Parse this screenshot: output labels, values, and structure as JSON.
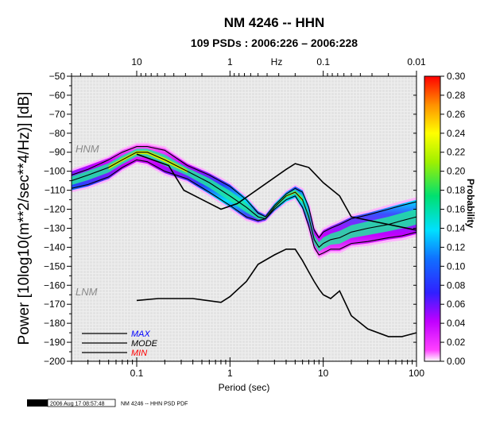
{
  "page": {
    "title": "NM 4246 -- HHN",
    "subtitle": "109 PSDs : 2006:226 – 2006:228",
    "footer_logo": "GMT",
    "footer_timestamp": "2006 Aug 17 08:57:48",
    "footer_caption": "NM 4246 -- HHN PSD PDF"
  },
  "colors": {
    "background_grid": "#e6e6e6",
    "curves": "#000000",
    "max_label": "#0000ff",
    "mode_label": "#000000",
    "min_label": "#ff0000",
    "model_label": "#8a8a8a"
  },
  "chart_data": {
    "type": "heatmap",
    "title": "NM 4246 -- HHN",
    "subtitle": "109 PSDs : 2006:226 – 2006:228",
    "xlabel": "Period (sec)",
    "ylabel": "Power [10log10(m**2/sec**4/Hz)] [dB]",
    "top_axis_label": "Hz",
    "x_scale": "log",
    "xlim": [
      0.02,
      100
    ],
    "ylim": [
      -200,
      -50
    ],
    "x_ticks": [
      0.1,
      1,
      10,
      100
    ],
    "x_tick_labels": [
      "0.1",
      "1",
      "10",
      "100"
    ],
    "top_ticks": [
      10,
      1,
      0.1,
      0.01
    ],
    "top_tick_labels": [
      "10",
      "1",
      "0.1",
      "0.01"
    ],
    "y_ticks": [
      -50,
      -60,
      -70,
      -80,
      -90,
      -100,
      -110,
      -120,
      -130,
      -140,
      -150,
      -160,
      -170,
      -180,
      -190,
      -200
    ],
    "y_tick_labels": [
      "−50",
      "−60",
      "−70",
      "−80",
      "−90",
      "−100",
      "−110",
      "−120",
      "−130",
      "−140",
      "−150",
      "−160",
      "−170",
      "−180",
      "−190",
      "−200"
    ],
    "colorbar": {
      "label": "Probability",
      "range": [
        0,
        0.3
      ],
      "ticks": [
        0,
        0.02,
        0.04,
        0.06,
        0.08,
        0.1,
        0.12,
        0.14,
        0.16,
        0.18,
        0.2,
        0.22,
        0.24,
        0.26,
        0.28,
        0.3
      ],
      "tick_labels": [
        "0.00",
        "0.02",
        "0.04",
        "0.06",
        "0.08",
        "0.10",
        "0.12",
        "0.14",
        "0.16",
        "0.18",
        "0.20",
        "0.22",
        "0.24",
        "0.26",
        "0.28",
        "0.30"
      ]
    },
    "legend": {
      "position": "bottom-left",
      "entries": [
        "MAX",
        "MODE",
        "MIN"
      ]
    },
    "noise_models": {
      "labels": {
        "high": "HNM",
        "low": "LNM"
      },
      "NHNM": {
        "x": [
          0.1,
          0.22,
          0.32,
          0.8,
          1.2,
          4,
          5,
          7,
          8,
          10,
          15,
          20,
          100
        ],
        "y": [
          -91,
          -97,
          -110,
          -120,
          -117,
          -99,
          -96,
          -98,
          -101,
          -106,
          -113,
          -124,
          -131
        ]
      },
      "NLNM": {
        "x": [
          0.1,
          0.17,
          0.4,
          0.8,
          1,
          1.5,
          2,
          3,
          4,
          5,
          6,
          7,
          8,
          9,
          10,
          12,
          15,
          20,
          30,
          50,
          70,
          100
        ],
        "y": [
          -168,
          -167,
          -167,
          -169,
          -166,
          -158,
          -149,
          -144,
          -141,
          -141,
          -147,
          -153,
          -158,
          -162,
          -165,
          -167,
          -163,
          -176,
          -183,
          -187,
          -187,
          -185
        ]
      }
    },
    "pdf_band": {
      "x": [
        0.02,
        0.03,
        0.05,
        0.07,
        0.1,
        0.13,
        0.2,
        0.35,
        0.6,
        1,
        1.5,
        2,
        2.4,
        3,
        4,
        5,
        6,
        7,
        8,
        9,
        10,
        12,
        15,
        20,
        30,
        50,
        70,
        100
      ],
      "upper": [
        -100,
        -97,
        -93,
        -89,
        -86,
        -86,
        -88,
        -96,
        -101,
        -107,
        -114,
        -121,
        -123,
        -117,
        -111,
        -108,
        -110,
        -118,
        -130,
        -134,
        -131,
        -129,
        -127,
        -124,
        -122,
        -119,
        -117,
        -115
      ],
      "lower": [
        -110,
        -108,
        -104,
        -99,
        -95,
        -96,
        -101,
        -105,
        -112,
        -119,
        -125,
        -127,
        -126,
        -121,
        -116,
        -114,
        -120,
        -130,
        -141,
        -145,
        -144,
        -142,
        -142,
        -139,
        -138,
        -136,
        -135,
        -133
      ],
      "peak": [
        -105,
        -102,
        -98,
        -94,
        -90,
        -90,
        -94,
        -100,
        -106,
        -113,
        -119,
        -124,
        -125,
        -119,
        -113,
        -111,
        -115,
        -124,
        -136,
        -140,
        -138,
        -136,
        -135,
        -132,
        -130,
        -128,
        -126,
        -124
      ]
    },
    "series": [
      {
        "name": "MAX",
        "x": [
          0.02,
          0.03,
          0.05,
          0.07,
          0.1,
          0.13,
          0.2,
          0.35,
          0.6,
          1,
          1.5,
          2,
          2.4,
          3,
          4,
          5,
          6,
          7,
          8,
          9,
          10,
          12,
          15,
          20,
          30,
          50,
          70,
          100
        ],
        "y": [
          -102,
          -99,
          -94,
          -90,
          -87,
          -87,
          -89,
          -97,
          -102,
          -108,
          -115,
          -122,
          -124,
          -118,
          -112,
          -109,
          -111,
          -119,
          -131,
          -135,
          -132,
          -130,
          -128,
          -125,
          -123,
          -120,
          -118,
          -116
        ]
      },
      {
        "name": "MODE",
        "x": [
          0.02,
          0.03,
          0.05,
          0.07,
          0.1,
          0.13,
          0.2,
          0.35,
          0.6,
          1,
          1.5,
          2,
          2.4,
          3,
          4,
          5,
          6,
          7,
          8,
          9,
          10,
          12,
          15,
          20,
          30,
          50,
          70,
          100
        ],
        "y": [
          -105,
          -102,
          -98,
          -94,
          -90,
          -90,
          -94,
          -100,
          -106,
          -113,
          -119,
          -124,
          -125,
          -119,
          -113,
          -111,
          -115,
          -124,
          -136,
          -140,
          -138,
          -136,
          -135,
          -132,
          -130,
          -128,
          -126,
          -124
        ]
      },
      {
        "name": "MIN",
        "x": [
          0.02,
          0.03,
          0.05,
          0.07,
          0.1,
          0.13,
          0.2,
          0.35,
          0.6,
          1,
          1.5,
          2,
          2.4,
          3,
          4,
          5,
          6,
          7,
          8,
          9,
          10,
          12,
          15,
          20,
          30,
          50,
          70,
          100
        ],
        "y": [
          -109,
          -107,
          -103,
          -98,
          -94,
          -95,
          -100,
          -104,
          -111,
          -118,
          -124,
          -126,
          -125,
          -120,
          -115,
          -113,
          -119,
          -129,
          -140,
          -144,
          -143,
          -141,
          -141,
          -138,
          -137,
          -135,
          -134,
          -132
        ]
      }
    ]
  }
}
